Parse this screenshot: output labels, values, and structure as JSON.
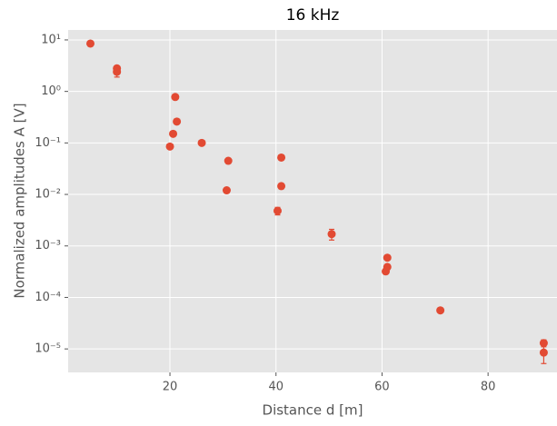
{
  "chart_data": {
    "type": "scatter",
    "title": "16 kHz",
    "x_label": "Distance d [m]",
    "y_label": "Normalized amplitudes A [V]",
    "log_y": true,
    "grid": true,
    "color": "#E24A33",
    "xlim": [
      0.8,
      93
    ],
    "xticks": [
      20,
      40,
      60,
      80
    ],
    "ylim": [
      3.5e-06,
      15.6
    ],
    "yticks": [
      {
        "value": 10,
        "label": "10¹"
      },
      {
        "value": 1,
        "label": "10⁰"
      },
      {
        "value": 0.1,
        "label": "10⁻¹"
      },
      {
        "value": 0.01,
        "label": "10⁻²"
      },
      {
        "value": 0.001,
        "label": "10⁻³"
      },
      {
        "value": 0.0001,
        "label": "10⁻⁴"
      },
      {
        "value": 1e-05,
        "label": "10⁻⁵"
      }
    ],
    "x": [
      5,
      10,
      10,
      21,
      21.3,
      20.6,
      20,
      26,
      31,
      30.7,
      41,
      41,
      40.3,
      50.5,
      61,
      61,
      60.7,
      71,
      90.5,
      90.5
    ],
    "values": [
      8.5,
      2.8,
      2.4,
      0.78,
      0.26,
      0.15,
      0.085,
      0.1,
      0.045,
      0.012,
      0.052,
      0.0145,
      0.0048,
      0.0017,
      0.00059,
      0.00039,
      0.00032,
      5.6e-05,
      1.3e-05,
      8.5e-06
    ],
    "errors": [
      null,
      null,
      0.5,
      null,
      null,
      null,
      null,
      null,
      null,
      null,
      null,
      null,
      0.0008,
      0.0004,
      null,
      null,
      null,
      null,
      2e-06,
      3.3e-06
    ]
  }
}
